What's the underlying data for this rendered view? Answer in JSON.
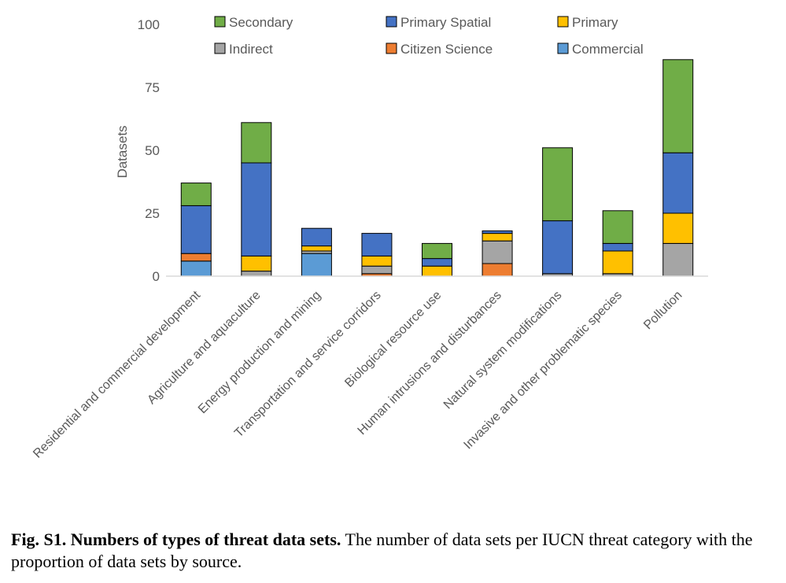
{
  "chart_data": {
    "type": "stacked-bar",
    "title": "",
    "xlabel": "",
    "ylabel": "Datasets",
    "ylim": [
      0,
      100
    ],
    "yticks": [
      0,
      25,
      50,
      75,
      100
    ],
    "grid": false,
    "legend_position": "top",
    "categories": [
      "Residential and commercial development",
      "Agriculture and aquaculture",
      "Energy production and mining",
      "Transportation and service corridors",
      "Biological resource use",
      "Human intrusions and disturbances",
      "Natural system modifications",
      "Invasive and other problematic species",
      "Pollution"
    ],
    "series": [
      {
        "name": "Commercial",
        "color": "#5b9bd5",
        "values": [
          6,
          0,
          9,
          0,
          0,
          0,
          0,
          0,
          0
        ]
      },
      {
        "name": "Citizen Science",
        "color": "#ed7d31",
        "values": [
          3,
          0,
          0,
          1,
          0,
          5,
          0,
          0,
          0
        ]
      },
      {
        "name": "Indirect",
        "color": "#a5a5a5",
        "values": [
          0,
          2,
          1,
          3,
          0,
          9,
          1,
          1,
          13
        ]
      },
      {
        "name": "Primary",
        "color": "#ffc000",
        "values": [
          0,
          6,
          2,
          4,
          4,
          3,
          0,
          9,
          12
        ]
      },
      {
        "name": "Primary Spatial",
        "color": "#4472c4",
        "values": [
          19,
          37,
          7,
          9,
          3,
          1,
          21,
          3,
          24
        ]
      },
      {
        "name": "Secondary",
        "color": "#70ad47",
        "values": [
          9,
          16,
          0,
          0,
          6,
          0,
          29,
          13,
          37
        ]
      }
    ],
    "legend_order": [
      "Secondary",
      "Primary Spatial",
      "Primary",
      "Indirect",
      "Citizen Science",
      "Commercial"
    ]
  },
  "caption": {
    "bold": "Fig. S1. Numbers of types of threat data sets.",
    "text": " The number of data sets per IUCN threat category with the proportion of data sets by source."
  }
}
